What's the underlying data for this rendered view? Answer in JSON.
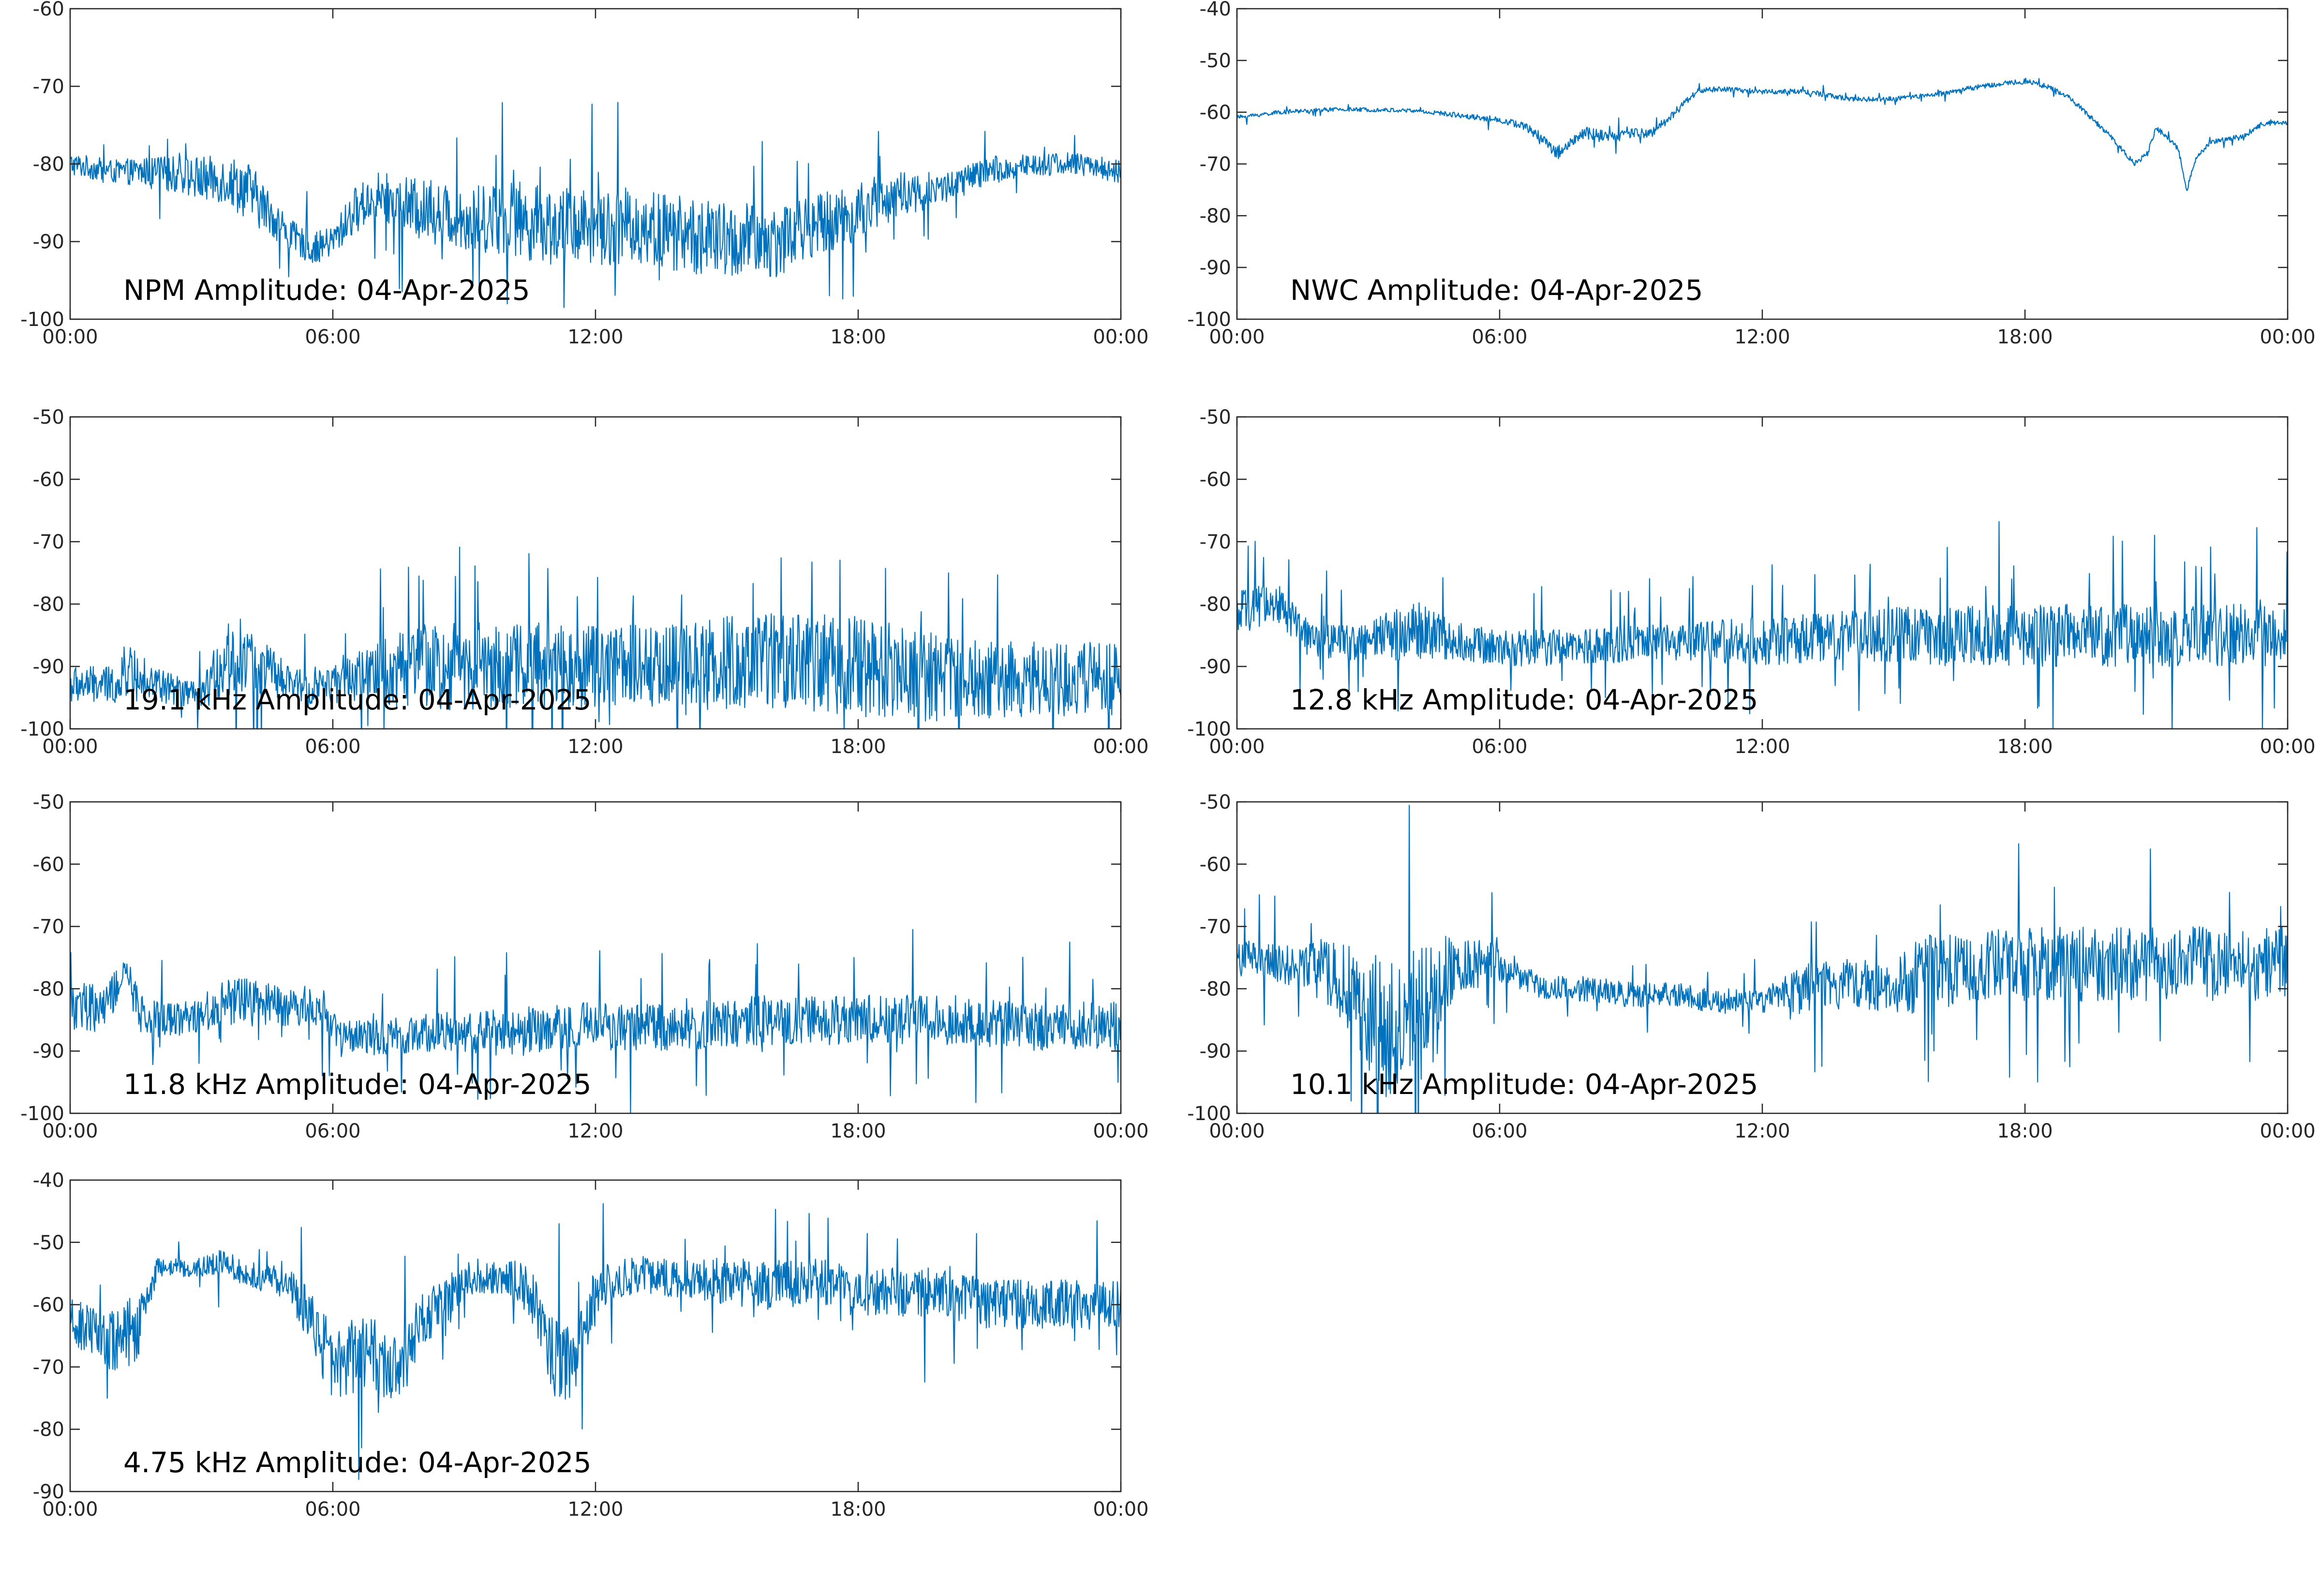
{
  "chart_data": [
    {
      "type": "line",
      "title": "NPM Amplitude: 04-Apr-2025",
      "series_color": "#0072BD",
      "x_unit": "hours (UTC)",
      "xlim": [
        0,
        24
      ],
      "x_ticks": [
        0,
        6,
        12,
        18,
        24
      ],
      "x_tick_labels": [
        "00:00",
        "06:00",
        "12:00",
        "18:00",
        "00:00"
      ],
      "ylim": [
        -100,
        -60
      ],
      "y_ticks": [
        -60,
        -70,
        -80,
        -90,
        -100
      ],
      "y_tick_labels": [
        "-60",
        "-70",
        "-80",
        "-90",
        "-100"
      ],
      "grid": false,
      "series": [
        {
          "x": [
            0,
            1,
            2,
            3,
            3.5,
            4,
            4.5,
            5,
            5.5,
            6,
            6.5,
            7,
            8,
            9,
            10,
            11,
            12,
            13,
            14,
            15,
            16,
            17,
            18,
            19,
            20,
            21,
            22,
            23,
            24
          ],
          "y": [
            -80,
            -81,
            -81,
            -82,
            -82,
            -83,
            -86,
            -89,
            -91,
            -90,
            -86,
            -84,
            -86,
            -87,
            -87,
            -88,
            -88,
            -88,
            -89,
            -90,
            -90,
            -88,
            -86,
            -84,
            -83,
            -81,
            -80,
            -80,
            -81
          ],
          "band": [
            1.5,
            1.5,
            2,
            3,
            3,
            4,
            3,
            2,
            2,
            2,
            3,
            3,
            4,
            4,
            5,
            5,
            5,
            5,
            5,
            5,
            5,
            4,
            4,
            3,
            2,
            2,
            1.5,
            1.5,
            1.5
          ]
        }
      ]
    },
    {
      "type": "line",
      "title": "NWC Amplitude: 04-Apr-2025",
      "series_color": "#0072BD",
      "x_unit": "hours (UTC)",
      "xlim": [
        0,
        24
      ],
      "x_ticks": [
        0,
        6,
        12,
        18,
        24
      ],
      "x_tick_labels": [
        "00:00",
        "06:00",
        "12:00",
        "18:00",
        "00:00"
      ],
      "ylim": [
        -100,
        -40
      ],
      "y_ticks": [
        -40,
        -50,
        -60,
        -70,
        -80,
        -90,
        -100
      ],
      "y_tick_labels": [
        "-40",
        "-50",
        "-60",
        "-70",
        "-80",
        "-90",
        "-100"
      ],
      "grid": false,
      "series": [
        {
          "x": [
            0,
            1,
            2,
            3,
            4,
            5,
            6,
            6.5,
            7,
            7.3,
            7.6,
            8,
            8.5,
            9,
            9.5,
            10,
            10.5,
            11,
            12,
            13,
            14,
            15,
            16,
            17,
            18,
            18.5,
            19,
            19.5,
            20,
            20.5,
            20.8,
            21,
            21.5,
            21.7,
            21.9,
            22.2,
            23,
            23.5,
            24
          ],
          "y": [
            -61,
            -60,
            -59.5,
            -59.5,
            -59.7,
            -60.5,
            -61.5,
            -62.5,
            -65,
            -68,
            -66,
            -64,
            -65,
            -64,
            -64,
            -60,
            -56,
            -55.5,
            -56,
            -56,
            -57.5,
            -57.5,
            -56.5,
            -55,
            -54,
            -55,
            -57,
            -61,
            -65,
            -70,
            -68,
            -63,
            -67,
            -75,
            -69,
            -66,
            -64.5,
            -62,
            -62
          ],
          "band": [
            0.4,
            0.4,
            0.4,
            0.4,
            0.4,
            0.5,
            0.6,
            0.8,
            1,
            1.5,
            1.2,
            1.2,
            1.2,
            1,
            1,
            0.8,
            0.6,
            0.5,
            0.5,
            0.5,
            0.5,
            0.5,
            0.5,
            0.5,
            0.5,
            0.5,
            0.5,
            0.5,
            0.5,
            0.5,
            0.5,
            0.5,
            0.5,
            0.5,
            0.5,
            0.5,
            0.5,
            0.6,
            0.5
          ]
        }
      ]
    },
    {
      "type": "line",
      "title": "19.1 kHz Amplitude: 04-Apr-2025",
      "series_color": "#0072BD",
      "x_unit": "hours (UTC)",
      "xlim": [
        0,
        24
      ],
      "x_ticks": [
        0,
        6,
        12,
        18,
        24
      ],
      "x_tick_labels": [
        "00:00",
        "06:00",
        "12:00",
        "18:00",
        "00:00"
      ],
      "ylim": [
        -100,
        -50
      ],
      "y_ticks": [
        -50,
        -60,
        -70,
        -80,
        -90,
        -100
      ],
      "y_tick_labels": [
        "-50",
        "-60",
        "-70",
        "-80",
        "-90",
        "-100"
      ],
      "grid": false,
      "series": [
        {
          "x": [
            0,
            1,
            1.5,
            2,
            3,
            3.5,
            4,
            5,
            6,
            7,
            8,
            10,
            12,
            14,
            16,
            18,
            20,
            22,
            24
          ],
          "y": [
            -93,
            -93,
            -90,
            -93,
            -95,
            -89,
            -88,
            -93,
            -93,
            -91,
            -90,
            -90,
            -90,
            -90,
            -89,
            -90,
            -92,
            -92,
            -92
          ],
          "band": [
            3,
            3,
            4,
            3,
            2,
            6,
            6,
            3,
            3,
            5,
            7,
            7,
            7,
            7,
            8,
            8,
            7,
            6,
            6
          ]
        }
      ]
    },
    {
      "type": "line",
      "title": "12.8 kHz Amplitude: 04-Apr-2025",
      "series_color": "#0072BD",
      "x_unit": "hours (UTC)",
      "xlim": [
        0,
        24
      ],
      "x_ticks": [
        0,
        6,
        12,
        18,
        24
      ],
      "x_tick_labels": [
        "00:00",
        "06:00",
        "12:00",
        "18:00",
        "00:00"
      ],
      "ylim": [
        -100,
        -50
      ],
      "y_ticks": [
        -50,
        -60,
        -70,
        -80,
        -90,
        -100
      ],
      "y_tick_labels": [
        "-50",
        "-60",
        "-70",
        "-80",
        "-90",
        "-100"
      ],
      "grid": false,
      "series": [
        {
          "x": [
            0,
            0.5,
            1,
            1.5,
            2,
            3,
            4,
            5,
            6,
            8,
            10,
            12,
            14,
            16,
            18,
            20,
            22,
            24
          ],
          "y": [
            -82,
            -80,
            -80,
            -85,
            -86,
            -86,
            -84,
            -86,
            -87,
            -87,
            -86,
            -86,
            -85,
            -85,
            -85,
            -85,
            -85,
            -85
          ],
          "band": [
            4,
            3,
            3,
            3,
            3,
            3,
            5,
            3,
            3,
            3,
            3,
            4,
            4,
            5,
            5,
            5,
            5,
            5
          ]
        }
      ]
    },
    {
      "type": "line",
      "title": "11.8 kHz Amplitude: 04-Apr-2025",
      "series_color": "#0072BD",
      "x_unit": "hours (UTC)",
      "xlim": [
        0,
        24
      ],
      "x_ticks": [
        0,
        6,
        12,
        18,
        24
      ],
      "x_tick_labels": [
        "00:00",
        "06:00",
        "12:00",
        "18:00",
        "00:00"
      ],
      "ylim": [
        -100,
        -50
      ],
      "y_ticks": [
        -50,
        -60,
        -70,
        -80,
        -90,
        -100
      ],
      "y_tick_labels": [
        "-50",
        "-60",
        "-70",
        "-80",
        "-90",
        "-100"
      ],
      "grid": false,
      "series": [
        {
          "x": [
            0,
            0.8,
            1.3,
            1.6,
            2,
            3,
            3.5,
            4,
            5,
            5.8,
            6.2,
            7,
            8,
            10,
            12,
            14,
            16,
            18,
            20,
            22,
            24
          ],
          "y": [
            -83,
            -83,
            -77,
            -84,
            -85,
            -84,
            -82,
            -82,
            -83,
            -83,
            -88,
            -88,
            -87,
            -87,
            -86,
            -86,
            -85,
            -85,
            -85,
            -86,
            -86
          ],
          "band": [
            4,
            4,
            2,
            3,
            3,
            3,
            4,
            4,
            3,
            3,
            3,
            3,
            3,
            4,
            4,
            4,
            4,
            4,
            4,
            4,
            4
          ]
        }
      ]
    },
    {
      "type": "line",
      "title": "10.1 kHz Amplitude: 04-Apr-2025",
      "series_color": "#0072BD",
      "x_unit": "hours (UTC)",
      "xlim": [
        0,
        24
      ],
      "x_ticks": [
        0,
        6,
        12,
        18,
        24
      ],
      "x_tick_labels": [
        "00:00",
        "06:00",
        "12:00",
        "18:00",
        "00:00"
      ],
      "ylim": [
        -100,
        -50
      ],
      "y_ticks": [
        -50,
        -60,
        -70,
        -80,
        -90,
        -100
      ],
      "y_tick_labels": [
        "-50",
        "-60",
        "-70",
        "-80",
        "-90",
        "-100"
      ],
      "grid": false,
      "series": [
        {
          "x": [
            0,
            1,
            2,
            2.5,
            3,
            3.5,
            4,
            4.5,
            5,
            6,
            7,
            8,
            9,
            10,
            11,
            12,
            13,
            14,
            15,
            15.5,
            16,
            18,
            20,
            22,
            24
          ],
          "y": [
            -75,
            -76,
            -77,
            -80,
            -85,
            -88,
            -84,
            -80,
            -76,
            -76,
            -80,
            -80,
            -81,
            -81,
            -82,
            -82,
            -80,
            -79,
            -80,
            -78,
            -77,
            -76,
            -76,
            -76,
            -76
          ],
          "band": [
            3,
            3,
            5,
            8,
            12,
            12,
            10,
            8,
            5,
            3,
            2,
            2,
            2,
            2,
            2,
            2,
            4,
            4,
            4,
            6,
            6,
            6,
            6,
            6,
            6
          ]
        }
      ]
    },
    {
      "type": "line",
      "title": "4.75 kHz Amplitude: 04-Apr-2025",
      "series_color": "#0072BD",
      "x_unit": "hours (UTC)",
      "xlim": [
        0,
        24
      ],
      "x_ticks": [
        0,
        6,
        12,
        18,
        24
      ],
      "x_tick_labels": [
        "00:00",
        "06:00",
        "12:00",
        "18:00",
        "00:00"
      ],
      "ylim": [
        -90,
        -40
      ],
      "y_ticks": [
        -40,
        -50,
        -60,
        -70,
        -80,
        -90
      ],
      "y_tick_labels": [
        "-40",
        "-50",
        "-60",
        "-70",
        "-80",
        "-90"
      ],
      "grid": false,
      "series": [
        {
          "x": [
            0,
            0.5,
            1,
            1.5,
            2,
            3,
            3.5,
            4,
            5,
            5.5,
            6,
            6.5,
            7,
            7.5,
            8,
            8.5,
            9,
            10,
            10.5,
            11,
            11.5,
            12,
            13,
            14,
            15,
            16,
            17,
            18,
            19,
            20,
            21,
            22,
            23,
            24
          ],
          "y": [
            -63,
            -64,
            -66,
            -64,
            -54,
            -54,
            -53,
            -55,
            -57,
            -62,
            -70,
            -68,
            -68,
            -72,
            -63,
            -60,
            -56,
            -55,
            -58,
            -68,
            -70,
            -58,
            -55,
            -56,
            -56,
            -57,
            -56,
            -58,
            -58,
            -58,
            -60,
            -60,
            -60,
            -60
          ],
          "band": [
            4,
            4,
            5,
            6,
            1.5,
            1.5,
            2,
            2,
            3,
            5,
            6,
            6,
            6,
            6,
            5,
            4,
            3,
            3,
            4,
            6,
            6,
            4,
            3,
            3,
            4,
            4,
            4,
            4,
            4,
            4,
            4,
            4,
            4,
            4
          ]
        }
      ]
    }
  ]
}
